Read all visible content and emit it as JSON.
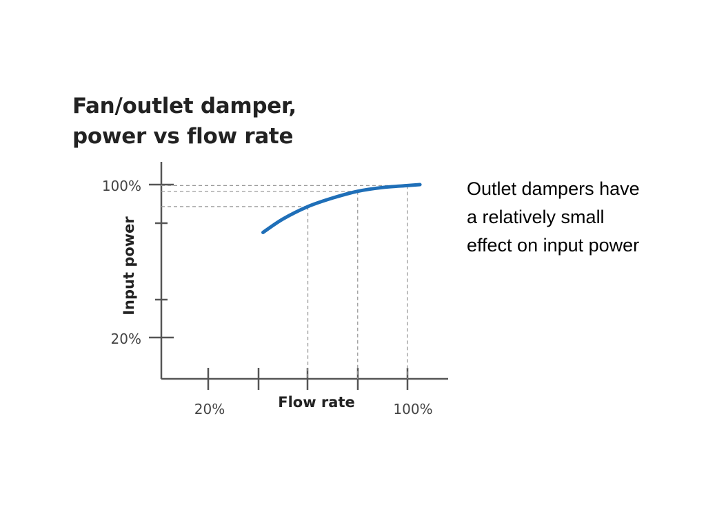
{
  "chart_data": {
    "type": "line",
    "title_lines": [
      "Fan/outlet damper,",
      "power vs flow rate"
    ],
    "xlabel": "Flow rate",
    "ylabel": "Input power",
    "x_tick_labels": [
      "20%",
      "100%"
    ],
    "y_tick_labels": [
      "100%",
      "20%"
    ],
    "series": [
      {
        "color": "#1f6fb8",
        "x": [
          42,
          50,
          60,
          70,
          80,
          90,
          100,
          105
        ],
        "y": [
          75,
          82,
          88.5,
          93,
          96.5,
          98.5,
          99.5,
          100
        ]
      }
    ],
    "reference_lines": [
      {
        "x": 60,
        "y": 88.5
      },
      {
        "x": 80,
        "y": 96.5
      },
      {
        "x": 100,
        "y": 99.5
      }
    ],
    "grid": false
  },
  "caption": {
    "lines": [
      "Outlet dampers have",
      "a relatively small",
      "effect on input power"
    ]
  }
}
